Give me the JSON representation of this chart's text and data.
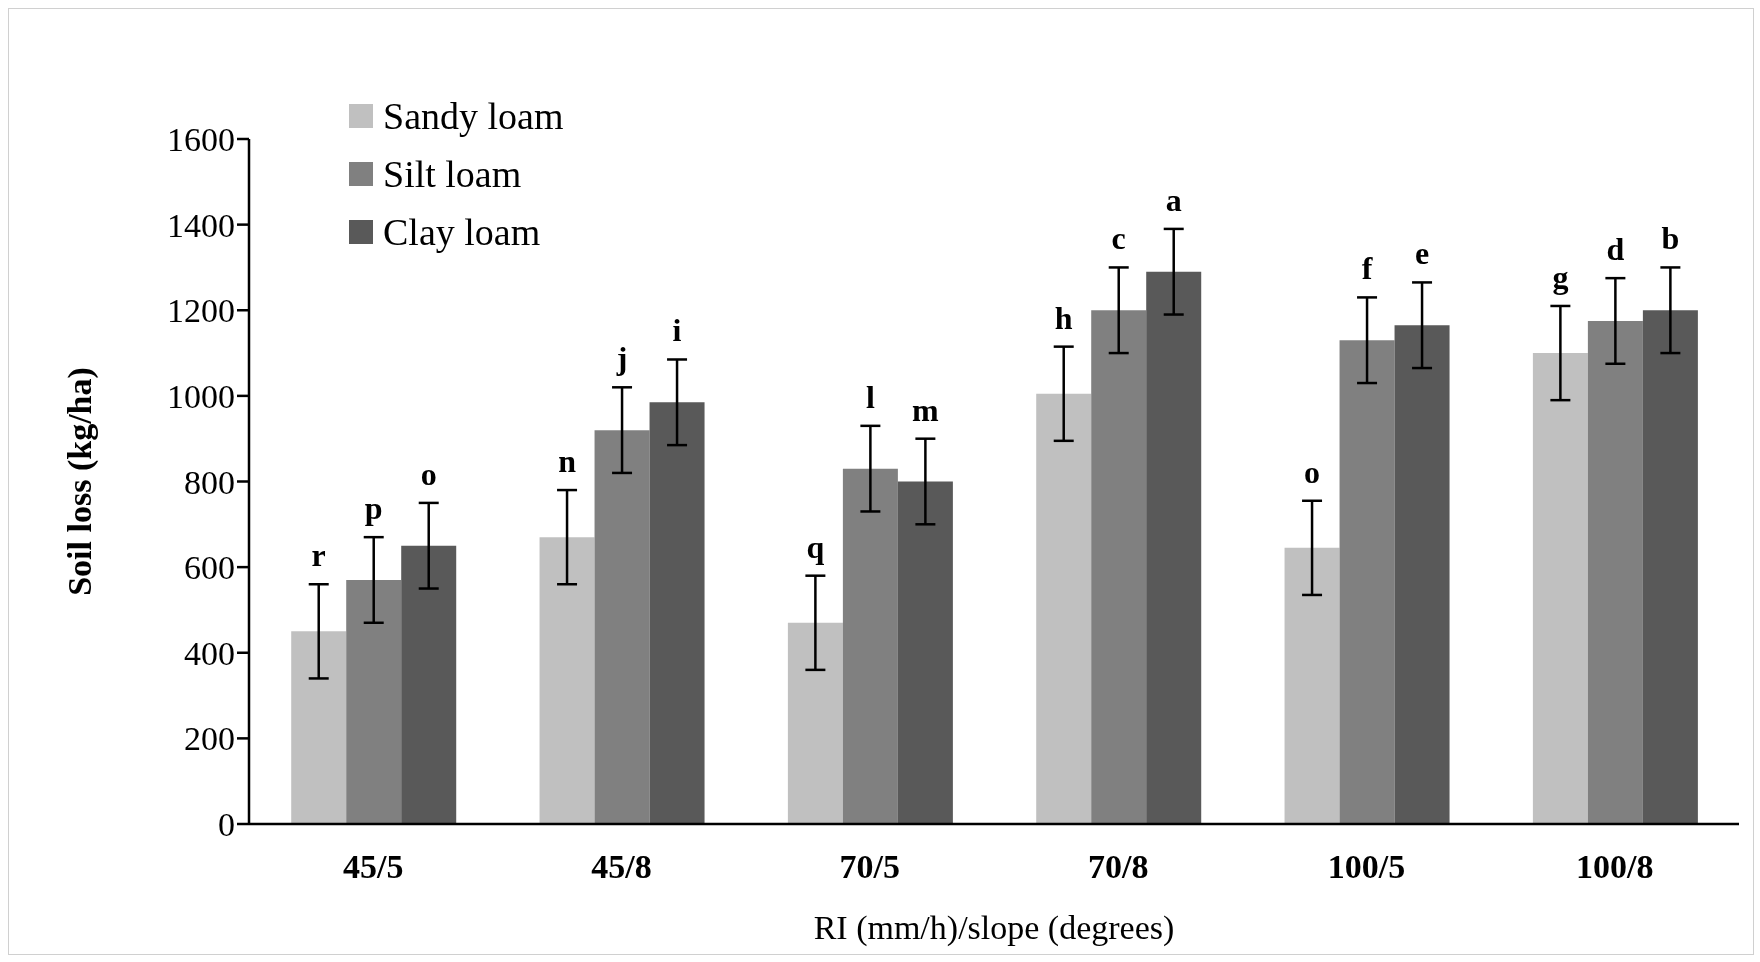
{
  "chart_data": {
    "type": "bar",
    "xlabel": "RI (mm/h)/slope (degrees)",
    "ylabel": "Soil loss (kg/ha)",
    "categories": [
      "45/5",
      "45/8",
      "70/5",
      "70/8",
      "100/5",
      "100/8"
    ],
    "series": [
      {
        "name": "Sandy loam",
        "color": "#c0c0c0",
        "values": [
          450,
          670,
          470,
          1005,
          645,
          1100
        ],
        "errors": [
          110,
          110,
          110,
          110,
          110,
          110
        ]
      },
      {
        "name": "Silt loam",
        "color": "#808080",
        "values": [
          570,
          920,
          830,
          1200,
          1130,
          1175
        ],
        "errors": [
          100,
          100,
          100,
          100,
          100,
          100
        ]
      },
      {
        "name": "Clay loam",
        "color": "#595959",
        "values": [
          650,
          985,
          800,
          1290,
          1165,
          1200
        ],
        "errors": [
          100,
          100,
          100,
          100,
          100,
          100
        ]
      }
    ],
    "ylim": [
      0,
      1600
    ],
    "yticks": [
      0,
      200,
      400,
      600,
      800,
      1000,
      1200,
      1400,
      1600
    ],
    "grid": false,
    "legend": "top left",
    "annotations": [
      "r",
      "p",
      "o",
      "n",
      "j",
      "i",
      "q",
      "l",
      "m",
      "h",
      "c",
      "a",
      "o",
      "f",
      "e",
      "g",
      "d",
      "b"
    ]
  }
}
